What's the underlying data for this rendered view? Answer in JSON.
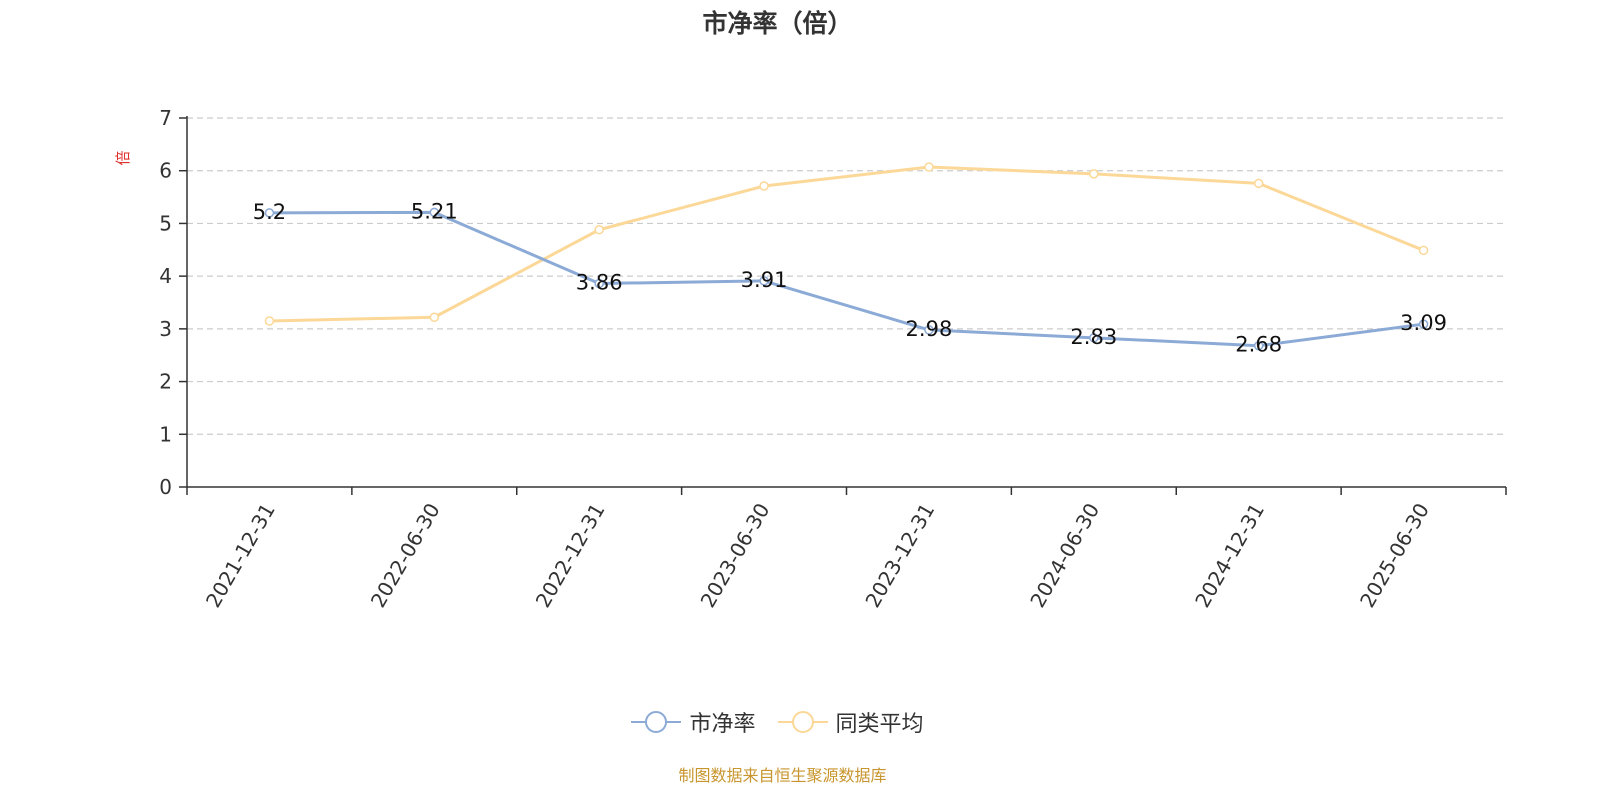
{
  "chart_data": {
    "type": "line",
    "title": "市净率（倍）",
    "ylabel": "倍",
    "xlabel": "",
    "categories": [
      "2021-12-31",
      "2022-06-30",
      "2022-12-31",
      "2023-06-30",
      "2023-12-31",
      "2024-06-30",
      "2024-12-31",
      "2025-06-30"
    ],
    "ylim": [
      0,
      7
    ],
    "yticks": [
      0,
      1,
      2,
      3,
      4,
      5,
      6,
      7
    ],
    "grid": true,
    "legend_position": "bottom",
    "series": [
      {
        "name": "市净率",
        "color": "#8caad6",
        "values": [
          5.2,
          5.21,
          3.86,
          3.91,
          2.98,
          2.83,
          2.68,
          3.09
        ],
        "labels": [
          "5.2",
          "5.21",
          "3.86",
          "3.91",
          "2.98",
          "2.83",
          "2.68",
          "3.09"
        ]
      },
      {
        "name": "同类平均",
        "color": "#fcd898",
        "values": [
          3.15,
          3.22,
          4.88,
          5.71,
          6.07,
          5.94,
          5.76,
          4.49
        ]
      }
    ]
  },
  "source": {
    "text": "制图数据来自恒生聚源数据库",
    "color": "#c8962e"
  },
  "ylabel_color": "#e0302d"
}
